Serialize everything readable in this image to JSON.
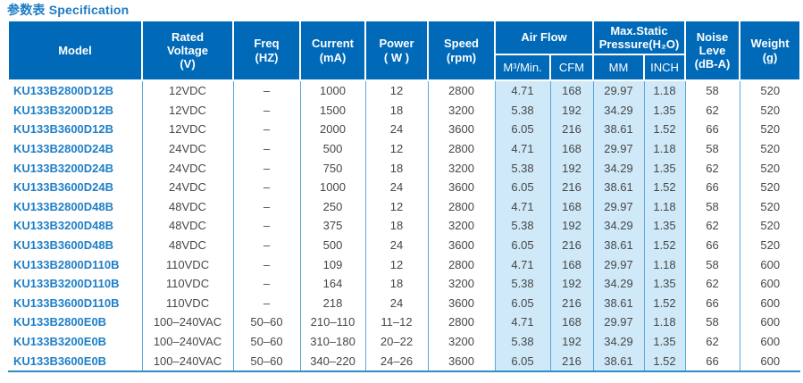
{
  "page": {
    "title": "参数表 Specification"
  },
  "colors": {
    "header_bg": "#0069b8",
    "header_text": "#ffffff",
    "highlight_column_bg": "#cfe9f8",
    "model_text": "#1e7fc8",
    "grid_line": "#58a7dc",
    "title_text": "#1c7cc4",
    "bottom_border": "#2f8bcb",
    "body_text": "#474747"
  },
  "table": {
    "headers": {
      "model": "Model",
      "rated_voltage": "Rated\nVoltage\n(V)",
      "freq": "Freq\n(HZ)",
      "current": "Current\n(mA)",
      "power": "Power\n( W )",
      "speed": "Speed\n(rpm)",
      "air_flow": "Air Flow",
      "max_static_pressure": "Max.Static\nPressure(H₂O)",
      "noise_level": "Noise\nLeve\n(dB-A)",
      "weight": "Weight\n(g)",
      "air_flow_m3min": "M³/Min.",
      "air_flow_cfm": "CFM",
      "pressure_mm": "MM",
      "pressure_inch": "INCH"
    },
    "column_keys": [
      "model",
      "rated_voltage",
      "freq",
      "current",
      "power",
      "speed",
      "airflow_m3min",
      "airflow_cfm",
      "pressure_mm",
      "pressure_inch",
      "noise_level",
      "weight"
    ],
    "rows": [
      [
        "KU133B2800D12B",
        "12VDC",
        "–",
        "1000",
        "12",
        "2800",
        "4.71",
        "168",
        "29.97",
        "1.18",
        "58",
        "520"
      ],
      [
        "KU133B3200D12B",
        "12VDC",
        "–",
        "1500",
        "18",
        "3200",
        "5.38",
        "192",
        "34.29",
        "1.35",
        "62",
        "520"
      ],
      [
        "KU133B3600D12B",
        "12VDC",
        "–",
        "2000",
        "24",
        "3600",
        "6.05",
        "216",
        "38.61",
        "1.52",
        "66",
        "520"
      ],
      [
        "KU133B2800D24B",
        "24VDC",
        "–",
        "500",
        "12",
        "2800",
        "4.71",
        "168",
        "29.97",
        "1.18",
        "58",
        "520"
      ],
      [
        "KU133B3200D24B",
        "24VDC",
        "–",
        "750",
        "18",
        "3200",
        "5.38",
        "192",
        "34.29",
        "1.35",
        "62",
        "520"
      ],
      [
        "KU133B3600D24B",
        "24VDC",
        "–",
        "1000",
        "24",
        "3600",
        "6.05",
        "216",
        "38.61",
        "1.52",
        "66",
        "520"
      ],
      [
        "KU133B2800D48B",
        "48VDC",
        "–",
        "250",
        "12",
        "2800",
        "4.71",
        "168",
        "29.97",
        "1.18",
        "58",
        "520"
      ],
      [
        "KU133B3200D48B",
        "48VDC",
        "–",
        "375",
        "18",
        "3200",
        "5.38",
        "192",
        "34.29",
        "1.35",
        "62",
        "520"
      ],
      [
        "KU133B3600D48B",
        "48VDC",
        "–",
        "500",
        "24",
        "3600",
        "6.05",
        "216",
        "38.61",
        "1.52",
        "66",
        "520"
      ],
      [
        "KU133B2800D110B",
        "110VDC",
        "–",
        "109",
        "12",
        "2800",
        "4.71",
        "168",
        "29.97",
        "1.18",
        "58",
        "600"
      ],
      [
        "KU133B3200D110B",
        "110VDC",
        "–",
        "164",
        "18",
        "3200",
        "5.38",
        "192",
        "34.29",
        "1.35",
        "62",
        "600"
      ],
      [
        "KU133B3600D110B",
        "110VDC",
        "–",
        "218",
        "24",
        "3600",
        "6.05",
        "216",
        "38.61",
        "1.52",
        "66",
        "600"
      ],
      [
        "KU133B2800E0B",
        "100–240VAC",
        "50–60",
        "210–110",
        "11–12",
        "2800",
        "4.71",
        "168",
        "29.97",
        "1.18",
        "58",
        "600"
      ],
      [
        "KU133B3200E0B",
        "100–240VAC",
        "50–60",
        "310–180",
        "20–22",
        "3200",
        "5.38",
        "192",
        "34.29",
        "1.35",
        "62",
        "600"
      ],
      [
        "KU133B3600E0B",
        "100–240VAC",
        "50–60",
        "340–220",
        "24–26",
        "3600",
        "6.05",
        "216",
        "38.61",
        "1.52",
        "66",
        "600"
      ]
    ]
  }
}
